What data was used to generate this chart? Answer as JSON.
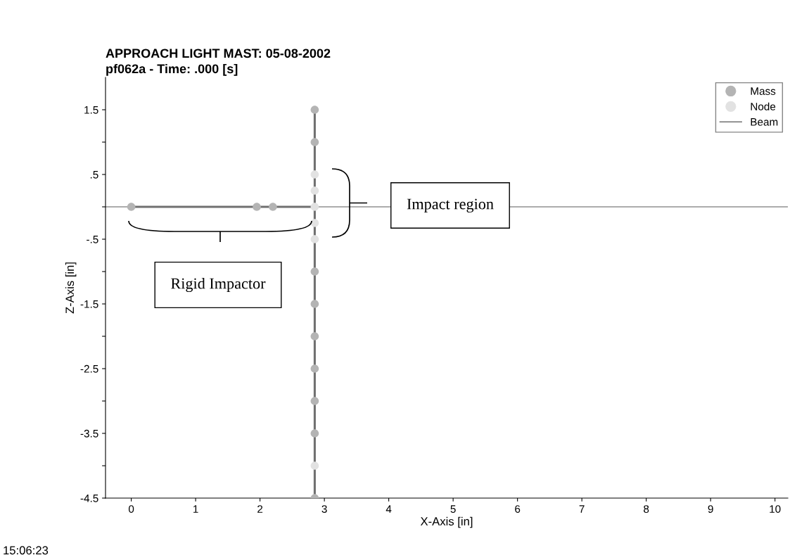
{
  "chart_data": {
    "type": "scatter",
    "title": "APPROACH LIGHT MAST: 05-08-2002",
    "subtitle": "pf062a - Time: .000 [s]",
    "xlabel": "X-Axis [in]",
    "ylabel": "Z-Axis [in]",
    "series": [
      {
        "name": "Mass",
        "color": "#b4b4b4",
        "x": [
          0,
          1.95,
          2.2,
          2.85,
          2.85,
          2.85,
          2.85,
          2.85,
          2.85,
          2.85,
          2.85,
          2.85
        ],
        "values": [
          0,
          0,
          0,
          1.5,
          1.0,
          -1.0,
          -1.5,
          -2.0,
          -2.5,
          -3.0,
          -3.5,
          -4.5
        ]
      },
      {
        "name": "Node",
        "color": "#e2e2e2",
        "x": [
          2.85,
          2.85,
          2.85,
          2.85,
          2.85,
          2.85
        ],
        "values": [
          0.5,
          0.25,
          0,
          -0.25,
          -0.5,
          -4.0
        ]
      },
      {
        "name": "Beam",
        "type": "line",
        "marker": "none",
        "color": "#707070",
        "x": [
          0,
          2.85,
          2.85,
          2.85
        ],
        "values": [
          0,
          0,
          1.5,
          -4.5
        ]
      }
    ],
    "ref_lines": [
      {
        "axis": "y",
        "value": 0,
        "color": "#909090"
      }
    ],
    "xlim": [
      -0.4,
      10.2
    ],
    "ylim": [
      -4.5,
      2.0
    ],
    "xticks": [
      0,
      1,
      2,
      3,
      4,
      5,
      6,
      7,
      8,
      9,
      10
    ],
    "yticks": [
      {
        "value": 1.5,
        "label": "1.5"
      },
      {
        "value": 1,
        "label": null
      },
      {
        "value": 0.5,
        "label": ".5"
      },
      {
        "value": 0,
        "label": null
      },
      {
        "value": -0.5,
        "label": "-.5"
      },
      {
        "value": -1,
        "label": null
      },
      {
        "value": -1.5,
        "label": "-1.5"
      },
      {
        "value": -2,
        "label": null
      },
      {
        "value": -2.5,
        "label": "-2.5"
      },
      {
        "value": -3,
        "label": null
      },
      {
        "value": -3.5,
        "label": "-3.5"
      },
      {
        "value": -4,
        "label": null
      },
      {
        "value": -4.5,
        "label": "-4.5"
      }
    ],
    "marker": "circle",
    "grid": false,
    "legend": "top right",
    "annotations": [
      "Impact region",
      "Rigid Impactor",
      "15:06:23"
    ]
  }
}
